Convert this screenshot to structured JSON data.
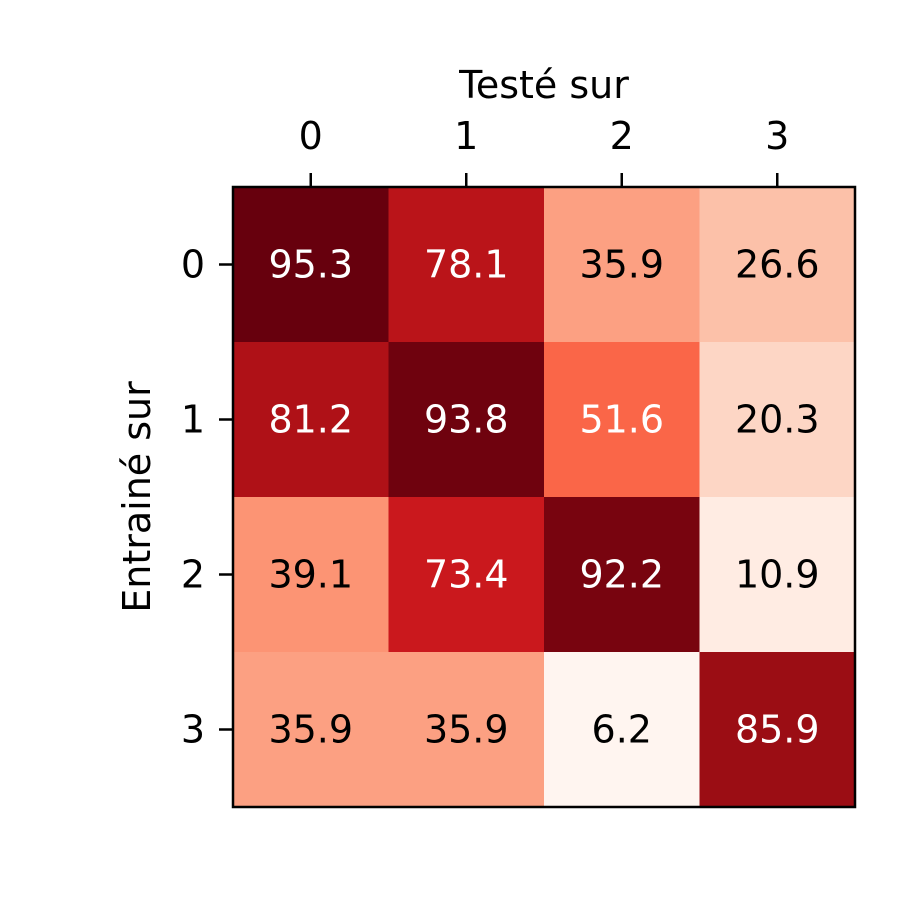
{
  "chart_data": {
    "type": "heatmap",
    "title": "",
    "xlabel": "Testé sur",
    "ylabel": "Entrainé sur",
    "x_categories": [
      "0",
      "1",
      "2",
      "3"
    ],
    "y_categories": [
      "0",
      "1",
      "2",
      "3"
    ],
    "values": [
      [
        95.3,
        78.1,
        35.9,
        26.6
      ],
      [
        81.2,
        93.8,
        51.6,
        20.3
      ],
      [
        39.1,
        73.4,
        92.2,
        10.9
      ],
      [
        35.9,
        35.9,
        6.2,
        85.9
      ]
    ],
    "colormap": "Reds",
    "x_axis_position": "top",
    "grid": false,
    "colorbar": false
  }
}
